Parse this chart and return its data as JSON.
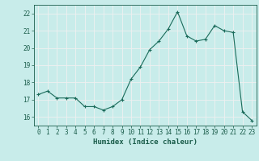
{
  "x": [
    0,
    1,
    2,
    3,
    4,
    5,
    6,
    7,
    8,
    9,
    10,
    11,
    12,
    13,
    14,
    15,
    16,
    17,
    18,
    19,
    20,
    21,
    22,
    23
  ],
  "y": [
    17.3,
    17.5,
    17.1,
    17.1,
    17.1,
    16.6,
    16.6,
    16.4,
    16.6,
    17.0,
    18.2,
    18.9,
    19.9,
    20.4,
    21.1,
    22.1,
    20.7,
    20.4,
    20.5,
    21.3,
    21.0,
    20.9,
    16.3,
    15.8
  ],
  "xlabel": "Humidex (Indice chaleur)",
  "xlim": [
    -0.5,
    23.5
  ],
  "ylim": [
    15.5,
    22.5
  ],
  "yticks": [
    16,
    17,
    18,
    19,
    20,
    21,
    22
  ],
  "xticks": [
    0,
    1,
    2,
    3,
    4,
    5,
    6,
    7,
    8,
    9,
    10,
    11,
    12,
    13,
    14,
    15,
    16,
    17,
    18,
    19,
    20,
    21,
    22,
    23
  ],
  "line_color": "#1a6b5a",
  "marker": "+",
  "bg_color": "#c8ecea",
  "grid_color": "#f0f0f0",
  "tick_label_color": "#1a5c4a",
  "axis_color": "#1a5c4a",
  "tick_fontsize": 5.5,
  "xlabel_fontsize": 6.5
}
